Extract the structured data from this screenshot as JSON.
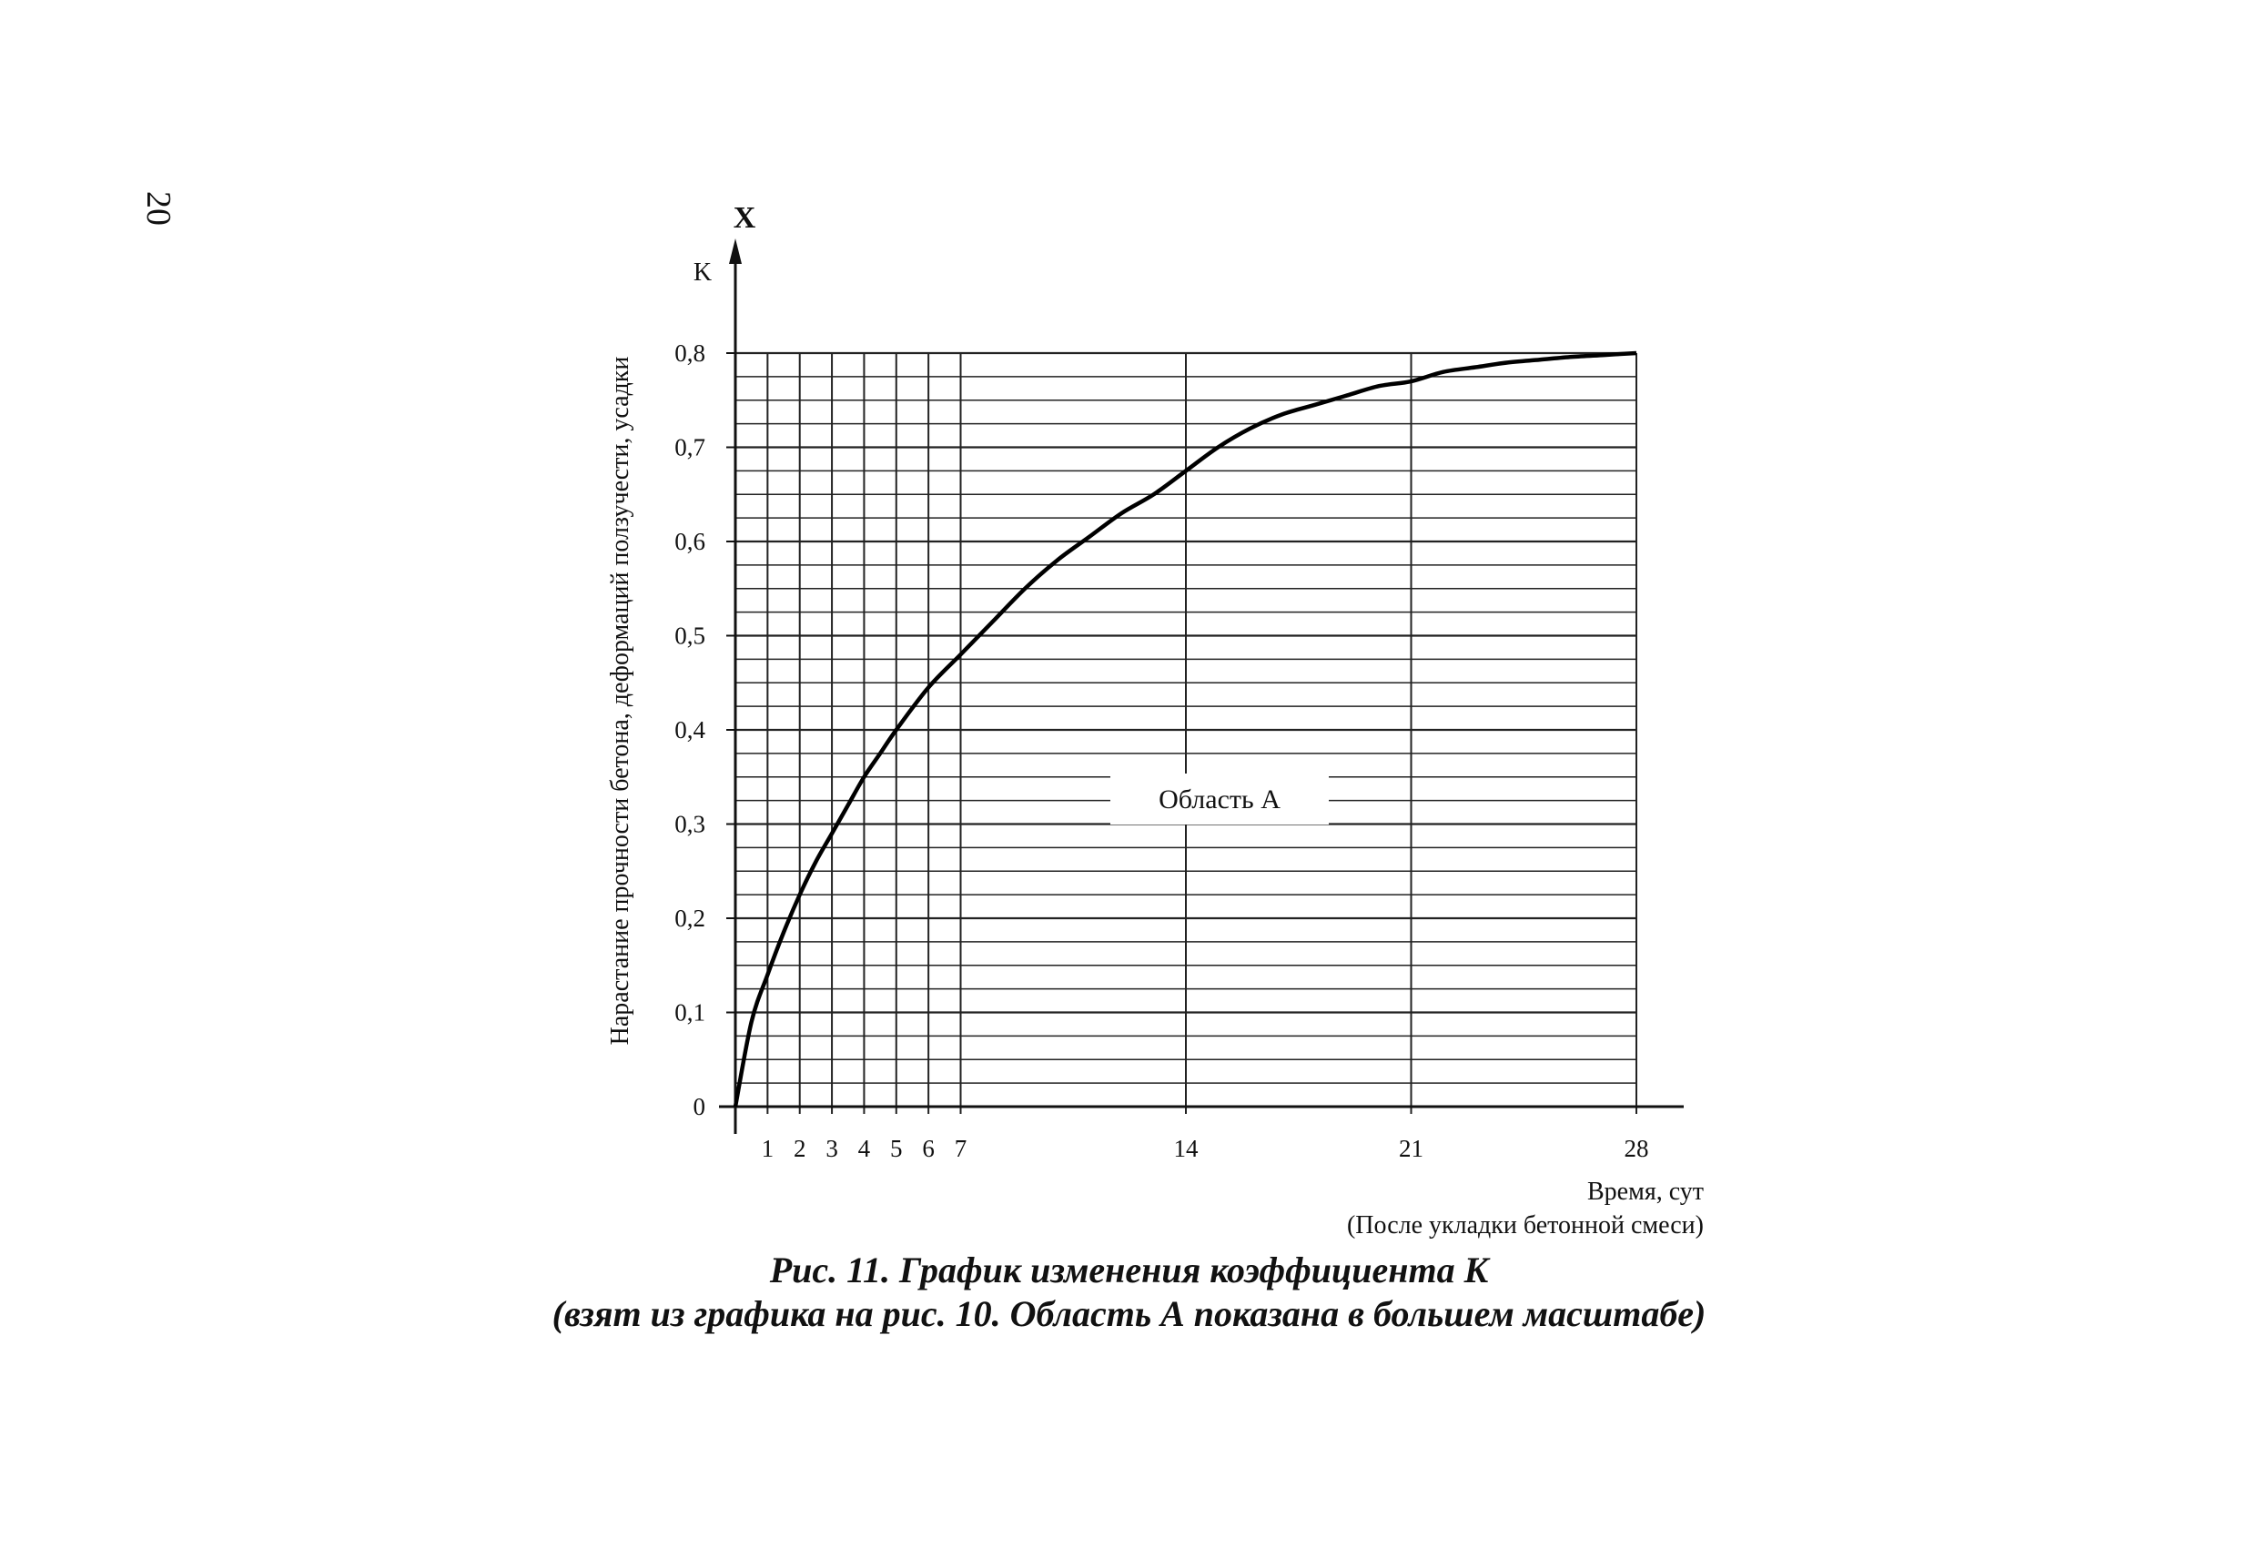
{
  "page": {
    "number": "20"
  },
  "caption": {
    "line1": "Рис. 11. График изменения коэффициента K",
    "line2": "(взят из графика на рис. 10. Область А показана в большем масштабе)"
  },
  "chart_data": {
    "type": "line",
    "ylabel": "Нарастание прочности бетона, деформаций ползучести, усадки",
    "y_axis_letter": "K",
    "y_axis_arrow_label": "X",
    "xlabel": "Время, сут",
    "xlabel_sub": "(После укладки бетонной смеси)",
    "region_label": "Область А",
    "xlim": [
      0,
      28
    ],
    "ylim": [
      0,
      0.8
    ],
    "x_ticks": [
      {
        "value": 1,
        "label": "1"
      },
      {
        "value": 2,
        "label": "2"
      },
      {
        "value": 3,
        "label": "3"
      },
      {
        "value": 4,
        "label": "4"
      },
      {
        "value": 5,
        "label": "5"
      },
      {
        "value": 6,
        "label": "6"
      },
      {
        "value": 7,
        "label": "7"
      },
      {
        "value": 14,
        "label": "14"
      },
      {
        "value": 21,
        "label": "21"
      },
      {
        "value": 28,
        "label": "28"
      }
    ],
    "y_ticks": [
      {
        "value": 0,
        "label": "0"
      },
      {
        "value": 0.1,
        "label": "0,1"
      },
      {
        "value": 0.2,
        "label": "0,2"
      },
      {
        "value": 0.3,
        "label": "0,3"
      },
      {
        "value": 0.4,
        "label": "0,4"
      },
      {
        "value": 0.5,
        "label": "0,5"
      },
      {
        "value": 0.6,
        "label": "0,6"
      },
      {
        "value": 0.7,
        "label": "0,7"
      },
      {
        "value": 0.8,
        "label": "0,8"
      }
    ],
    "grid": true,
    "grid_y_step": 0.025,
    "grid_x_lines": [
      0,
      1,
      2,
      3,
      4,
      5,
      6,
      7,
      14,
      21,
      28
    ],
    "series": [
      {
        "x": [
          0,
          0.5,
          1,
          1.5,
          2,
          2.5,
          3,
          3.5,
          4,
          4.5,
          5,
          6,
          7,
          8,
          9,
          10,
          11,
          12,
          13,
          14,
          15,
          16,
          17,
          18,
          19,
          20,
          21,
          22,
          23,
          24,
          25,
          26,
          27,
          28
        ],
        "y": [
          0,
          0.09,
          0.14,
          0.185,
          0.225,
          0.26,
          0.29,
          0.32,
          0.35,
          0.375,
          0.4,
          0.445,
          0.48,
          0.515,
          0.55,
          0.58,
          0.605,
          0.63,
          0.65,
          0.675,
          0.7,
          0.72,
          0.735,
          0.745,
          0.755,
          0.765,
          0.77,
          0.78,
          0.785,
          0.79,
          0.793,
          0.796,
          0.798,
          0.8
        ]
      }
    ]
  }
}
